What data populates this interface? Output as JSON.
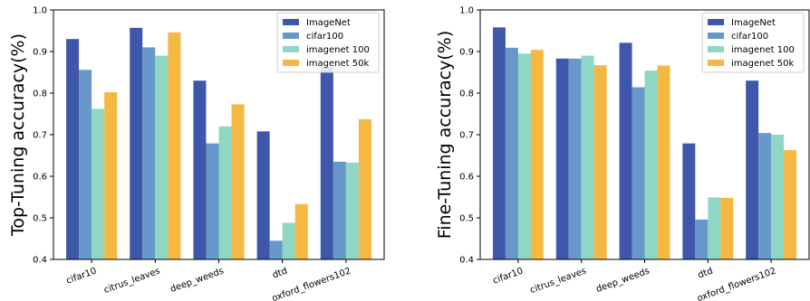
{
  "chart_data": [
    {
      "type": "bar",
      "ylabel": "Top-Tuning accuracy(%)",
      "ylim": [
        0.4,
        1.0
      ],
      "yticks": [
        "0.4",
        "0.5",
        "0.6",
        "0.7",
        "0.8",
        "0.9",
        "1.0"
      ],
      "categories": [
        "cifar10",
        "citrus_leaves",
        "deep_weeds",
        "dtd",
        "oxford_flowers102"
      ],
      "legend_position": "top-right",
      "series": [
        {
          "name": "ImageNet",
          "color": "#3f57aa",
          "values": [
            0.93,
            0.957,
            0.83,
            0.708,
            0.863
          ]
        },
        {
          "name": "cifar100",
          "color": "#6798c9",
          "values": [
            0.856,
            0.91,
            0.679,
            0.445,
            0.635
          ]
        },
        {
          "name": "imagenet 100",
          "color": "#8fd7c4",
          "values": [
            0.762,
            0.89,
            0.72,
            0.488,
            0.633
          ]
        },
        {
          "name": "imagenet 50k",
          "color": "#f4b843",
          "values": [
            0.802,
            0.946,
            0.773,
            0.533,
            0.737
          ]
        }
      ]
    },
    {
      "type": "bar",
      "ylabel": "Fine-Tuning accuracy(%)",
      "ylim": [
        0.4,
        1.0
      ],
      "yticks": [
        "0.4",
        "0.5",
        "0.6",
        "0.7",
        "0.8",
        "0.9",
        "1.0"
      ],
      "categories": [
        "cifar10",
        "citrus_leaves",
        "deep_weeds",
        "dtd",
        "oxford_flowers102"
      ],
      "legend_position": "top-right",
      "series": [
        {
          "name": "ImageNet",
          "color": "#3f57aa",
          "values": [
            0.958,
            0.883,
            0.921,
            0.679,
            0.83
          ]
        },
        {
          "name": "cifar100",
          "color": "#6798c9",
          "values": [
            0.909,
            0.883,
            0.814,
            0.496,
            0.704
          ]
        },
        {
          "name": "imagenet 100",
          "color": "#8fd7c4",
          "values": [
            0.895,
            0.89,
            0.854,
            0.549,
            0.7
          ]
        },
        {
          "name": "imagenet 50k",
          "color": "#f4b843",
          "values": [
            0.904,
            0.867,
            0.866,
            0.548,
            0.663
          ]
        }
      ]
    }
  ]
}
